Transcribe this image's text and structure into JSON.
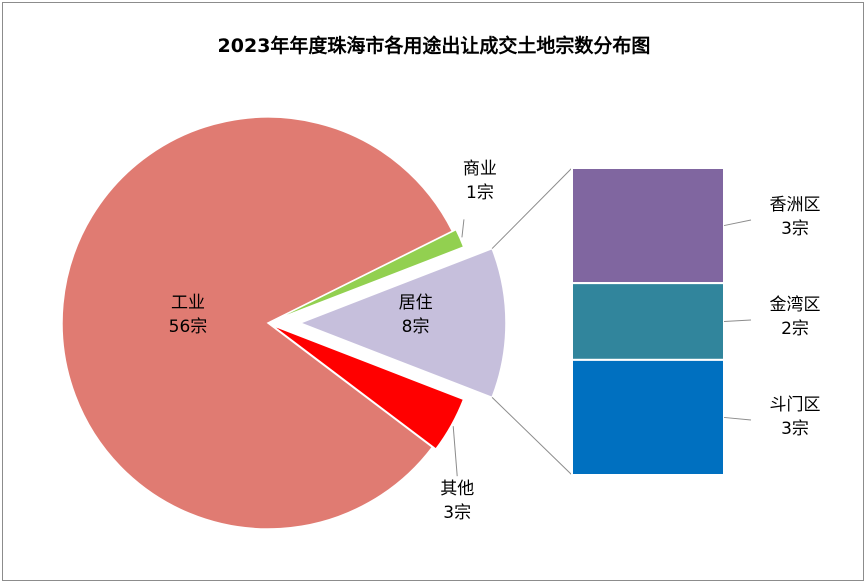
{
  "chart_data": {
    "type": "pie",
    "title": "2023年年度珠海市各用途出让成交土地宗数分布图",
    "slices": [
      {
        "label": "工业",
        "value": 56,
        "value_label": "56宗",
        "color": "#e07b72"
      },
      {
        "label": "商业",
        "value": 1,
        "value_label": "1宗",
        "color": "#92d050"
      },
      {
        "label": "居住",
        "value": 8,
        "value_label": "8宗",
        "color": "#c6bfdc"
      },
      {
        "label": "其他",
        "value": 3,
        "value_label": "3宗",
        "color": "#ff0000"
      }
    ],
    "breakdown": {
      "of": "居住",
      "type": "stacked-bar",
      "segments": [
        {
          "label": "香洲区",
          "value": 3,
          "value_label": "3宗",
          "color": "#8066a0"
        },
        {
          "label": "金湾区",
          "value": 2,
          "value_label": "2宗",
          "color": "#31859c"
        },
        {
          "label": "斗门区",
          "value": 3,
          "value_label": "3宗",
          "color": "#0070c0"
        }
      ]
    }
  }
}
